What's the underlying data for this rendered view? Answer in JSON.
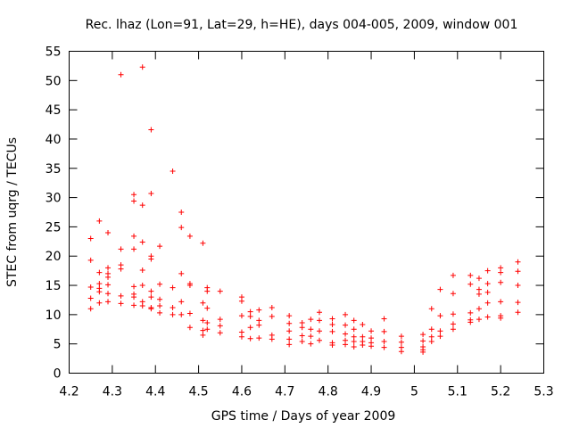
{
  "chart_data": {
    "type": "scatter",
    "title": "Rec. lhaz (Lon=91, Lat=29, h=HE), days 004-005, 2009, window 001",
    "xlabel": "GPS time / Days of year 2009",
    "ylabel": "STEC from uqrg / TECUs",
    "xlim": [
      4.2,
      5.3
    ],
    "ylim": [
      0,
      55
    ],
    "xticks": [
      4.2,
      4.3,
      4.4,
      4.5,
      4.6,
      4.7,
      4.8,
      4.9,
      5.0,
      5.1,
      5.2,
      5.3
    ],
    "xtick_labels": [
      "4.2",
      "4.3",
      "4.4",
      "4.5",
      "4.6",
      "4.7",
      "4.8",
      "4.9",
      "5",
      "5.1",
      "5.2",
      "5.3"
    ],
    "yticks": [
      0,
      5,
      10,
      15,
      20,
      25,
      30,
      35,
      40,
      45,
      50,
      55
    ],
    "ytick_labels": [
      "0",
      "5",
      "10",
      "15",
      "20",
      "25",
      "30",
      "35",
      "40",
      "45",
      "50",
      "55"
    ],
    "marker": "+",
    "color": "#ff0000",
    "grid": false,
    "series": [
      {
        "name": "STEC",
        "x": [
          4.25,
          4.25,
          4.25,
          4.25,
          4.25,
          4.27,
          4.27,
          4.27,
          4.27,
          4.27,
          4.27,
          4.29,
          4.29,
          4.29,
          4.29,
          4.29,
          4.29,
          4.29,
          4.32,
          4.32,
          4.32,
          4.32,
          4.32,
          4.32,
          4.35,
          4.35,
          4.35,
          4.35,
          4.35,
          4.35,
          4.35,
          4.35,
          4.37,
          4.37,
          4.37,
          4.37,
          4.37,
          4.37,
          4.37,
          4.39,
          4.39,
          4.39,
          4.39,
          4.39,
          4.39,
          4.39,
          4.39,
          4.41,
          4.41,
          4.41,
          4.41,
          4.41,
          4.44,
          4.44,
          4.44,
          4.44,
          4.46,
          4.46,
          4.46,
          4.46,
          4.46,
          4.48,
          4.48,
          4.48,
          4.48,
          4.48,
          4.51,
          4.51,
          4.51,
          4.51,
          4.51,
          4.52,
          4.52,
          4.52,
          4.52,
          4.52,
          4.55,
          4.55,
          4.55,
          4.55,
          4.6,
          4.6,
          4.6,
          4.6,
          4.6,
          4.62,
          4.62,
          4.62,
          4.62,
          4.64,
          4.64,
          4.64,
          4.64,
          4.67,
          4.67,
          4.67,
          4.67,
          4.71,
          4.71,
          4.71,
          4.71,
          4.71,
          4.74,
          4.74,
          4.74,
          4.74,
          4.76,
          4.76,
          4.76,
          4.76,
          4.78,
          4.78,
          4.78,
          4.78,
          4.81,
          4.81,
          4.81,
          4.81,
          4.81,
          4.84,
          4.84,
          4.84,
          4.84,
          4.84,
          4.86,
          4.86,
          4.86,
          4.86,
          4.86,
          4.88,
          4.88,
          4.88,
          4.88,
          4.9,
          4.9,
          4.9,
          4.9,
          4.93,
          4.93,
          4.93,
          4.93,
          4.97,
          4.97,
          4.97,
          4.97,
          5.02,
          5.02,
          5.02,
          5.02,
          5.02,
          5.04,
          5.04,
          5.04,
          5.04,
          5.06,
          5.06,
          5.06,
          5.06,
          5.09,
          5.09,
          5.09,
          5.09,
          5.09,
          5.13,
          5.13,
          5.13,
          5.13,
          5.13,
          5.15,
          5.15,
          5.15,
          5.15,
          5.15,
          5.17,
          5.17,
          5.17,
          5.17,
          5.17,
          5.2,
          5.2,
          5.2,
          5.2,
          5.2,
          5.2,
          5.24,
          5.24,
          5.24,
          5.24,
          5.24
        ],
        "y": [
          23.0,
          19.3,
          14.7,
          12.8,
          11.0,
          26.0,
          17.2,
          15.3,
          14.5,
          13.9,
          12.0,
          24.0,
          18.0,
          16.4,
          15.1,
          13.6,
          12.2,
          17.0,
          51.0,
          21.2,
          18.5,
          17.8,
          13.2,
          11.9,
          30.5,
          29.4,
          23.4,
          21.2,
          14.8,
          13.5,
          13.0,
          11.6,
          52.3,
          28.7,
          22.4,
          17.6,
          15.0,
          12.2,
          11.5,
          41.6,
          30.7,
          20.0,
          19.5,
          14.0,
          13.0,
          11.2,
          11.0,
          21.7,
          15.2,
          12.6,
          11.5,
          10.3,
          34.5,
          14.6,
          11.2,
          10.0,
          27.5,
          24.9,
          17.0,
          12.2,
          10.0,
          23.4,
          15.3,
          15.0,
          10.2,
          7.8,
          22.2,
          12.0,
          9.0,
          7.3,
          6.5,
          14.6,
          14.0,
          11.1,
          8.6,
          7.5,
          14.0,
          9.2,
          8.1,
          6.9,
          13.0,
          12.3,
          9.8,
          7.0,
          6.2,
          10.5,
          9.7,
          7.8,
          5.9,
          10.8,
          9.0,
          8.2,
          6.0,
          11.2,
          9.7,
          6.5,
          5.8,
          9.8,
          8.5,
          7.2,
          5.8,
          4.9,
          8.6,
          7.8,
          6.4,
          5.4,
          9.2,
          7.5,
          6.3,
          5.0,
          10.4,
          9.0,
          7.2,
          5.6,
          9.3,
          8.3,
          7.1,
          5.2,
          4.8,
          10.0,
          8.2,
          6.7,
          5.6,
          4.9,
          9.0,
          7.5,
          6.2,
          5.4,
          4.5,
          8.3,
          6.2,
          5.4,
          4.8,
          7.2,
          6.0,
          5.2,
          4.6,
          9.3,
          7.1,
          5.4,
          4.4,
          6.3,
          5.3,
          4.4,
          3.7,
          6.6,
          5.5,
          4.5,
          4.0,
          3.6,
          11.0,
          7.5,
          6.2,
          5.4,
          14.3,
          9.8,
          7.2,
          6.3,
          16.7,
          13.6,
          10.1,
          8.4,
          7.5,
          16.7,
          15.2,
          10.3,
          9.1,
          8.7,
          16.2,
          14.3,
          13.5,
          11.0,
          9.2,
          17.5,
          15.3,
          13.8,
          12.0,
          9.6,
          18.0,
          17.2,
          15.5,
          12.2,
          9.8,
          9.4,
          19.0,
          17.4,
          15.0,
          12.1,
          10.4
        ]
      }
    ]
  }
}
